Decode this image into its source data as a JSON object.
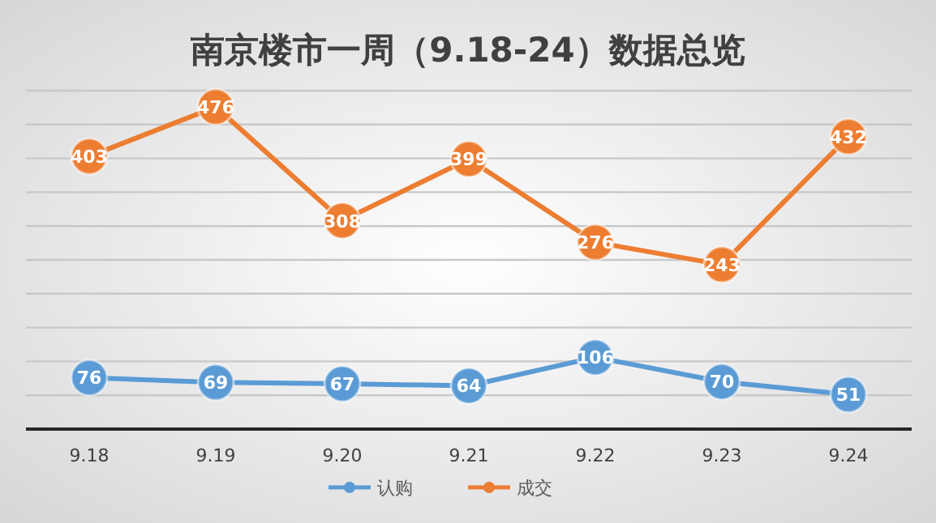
{
  "chart_data": {
    "type": "line",
    "title": "南京楼市一周（9.18-24）数据总览",
    "categories": [
      "9.18",
      "9.19",
      "9.20",
      "9.21",
      "9.22",
      "9.23",
      "9.24"
    ],
    "series": [
      {
        "name": "认购",
        "color": "#5b9bd5",
        "values": [
          76,
          69,
          67,
          64,
          106,
          70,
          51
        ]
      },
      {
        "name": "成交",
        "color": "#ed7d31",
        "values": [
          403,
          476,
          308,
          399,
          276,
          243,
          432
        ]
      }
    ],
    "ylim": [
      0,
      500
    ],
    "yticks": [
      {
        "value": 0,
        "label": null
      },
      {
        "value": 50,
        "label": null
      },
      {
        "value": 100,
        "label": null
      },
      {
        "value": 150,
        "label": null
      },
      {
        "value": 200,
        "label": null
      },
      {
        "value": 250,
        "label": null
      },
      {
        "value": 300,
        "label": null
      },
      {
        "value": 350,
        "label": null
      },
      {
        "value": 400,
        "label": null
      },
      {
        "value": 450,
        "label": null
      },
      {
        "value": 500,
        "label": null
      }
    ],
    "tick_labels": "x",
    "grid": "y",
    "legend": "bottom",
    "marker": "circle",
    "line_style": "solid",
    "data_labels": true
  }
}
